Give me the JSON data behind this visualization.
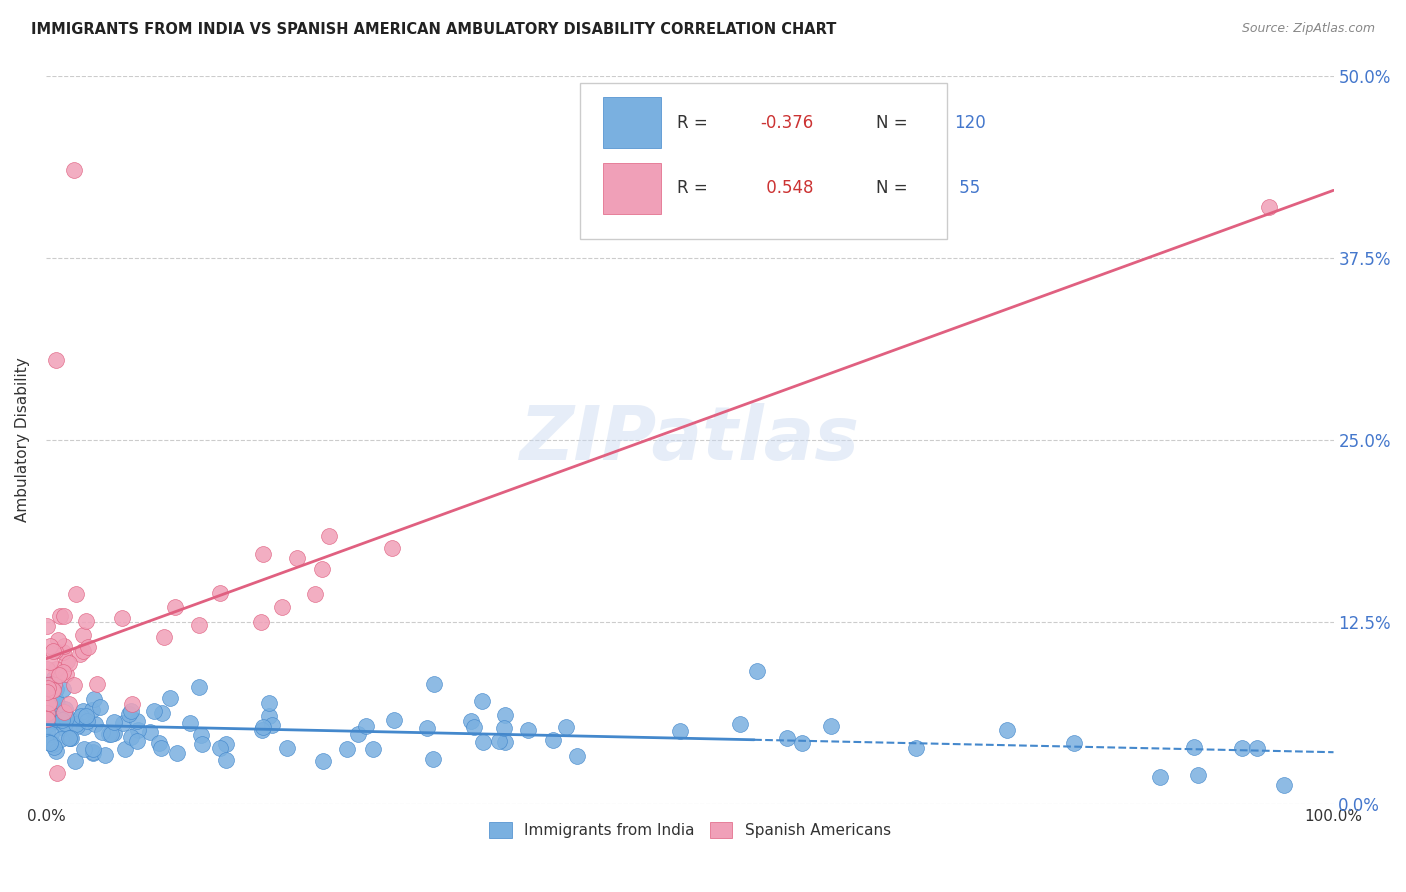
{
  "title": "IMMIGRANTS FROM INDIA VS SPANISH AMERICAN AMBULATORY DISABILITY CORRELATION CHART",
  "source": "Source: ZipAtlas.com",
  "ylabel": "Ambulatory Disability",
  "ytick_vals": [
    0.0,
    0.125,
    0.25,
    0.375,
    0.5
  ],
  "ytick_labels": [
    "0.0%",
    "12.5%",
    "25.0%",
    "37.5%",
    "50.0%"
  ],
  "legend_blue_R": "-0.376",
  "legend_blue_N": "120",
  "legend_pink_R": "0.548",
  "legend_pink_N": "55",
  "legend_labels": [
    "Immigrants from India",
    "Spanish Americans"
  ],
  "blue_color": "#7ab0e0",
  "pink_color": "#f0a0b8",
  "blue_line_color": "#4488cc",
  "pink_line_color": "#e06080",
  "watermark": "ZIPatlas",
  "xlim": [
    0.0,
    1.0
  ],
  "ylim": [
    0.0,
    0.5
  ]
}
